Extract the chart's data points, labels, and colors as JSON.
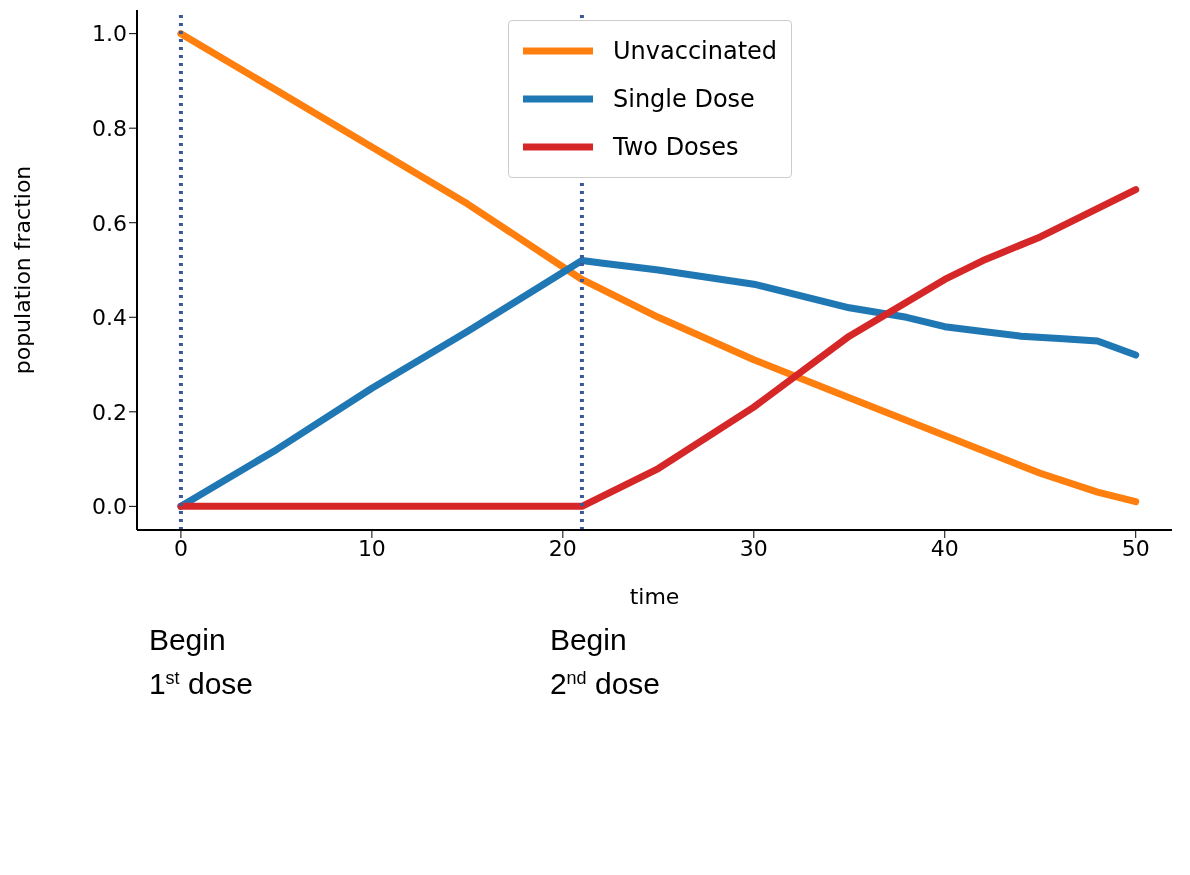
{
  "chart_data": {
    "type": "line",
    "xlabel": "time",
    "ylabel": "population fraction",
    "xlim": [
      -2.3,
      51.9
    ],
    "ylim": [
      -0.05,
      1.05
    ],
    "xticks": [
      0,
      10,
      20,
      30,
      40,
      50
    ],
    "yticks": [
      {
        "value": 0,
        "label": "0.0"
      },
      {
        "value": 0.2,
        "label": "0.2"
      },
      {
        "value": 0.4,
        "label": "0.4"
      },
      {
        "value": 0.6,
        "label": "0.6"
      },
      {
        "value": 0.8,
        "label": "0.8"
      },
      {
        "value": 1,
        "label": "1.0"
      }
    ],
    "grid": false,
    "legend": "top",
    "line_style": "solid",
    "marker": "none",
    "series": [
      {
        "name": "Unvaccinated",
        "color": "#ff7f0e",
        "x": [
          0,
          5,
          10,
          15,
          21,
          25,
          30,
          35,
          40,
          45,
          48,
          50
        ],
        "values": [
          1.0,
          0.88,
          0.76,
          0.64,
          0.48,
          0.4,
          0.31,
          0.23,
          0.15,
          0.07,
          0.03,
          0.01
        ]
      },
      {
        "name": "Single Dose",
        "color": "#1f77b4",
        "x": [
          0,
          5,
          10,
          15,
          19,
          21,
          22,
          25,
          30,
          35,
          38,
          40,
          42,
          44,
          46,
          48,
          50
        ],
        "values": [
          0,
          0.12,
          0.25,
          0.37,
          0.47,
          0.52,
          0.515,
          0.5,
          0.47,
          0.42,
          0.4,
          0.38,
          0.37,
          0.36,
          0.355,
          0.35,
          0.32
        ]
      },
      {
        "name": "Two Doses",
        "color": "#d62728",
        "x": [
          0,
          21,
          25,
          30,
          35,
          40,
          42,
          45,
          50
        ],
        "values": [
          0,
          0,
          0.08,
          0.21,
          0.36,
          0.48,
          0.52,
          0.57,
          0.67
        ]
      }
    ],
    "ref_lines": [
      {
        "axis": "x",
        "value": 0,
        "color": "#3b5998",
        "line_style": "dotted"
      },
      {
        "axis": "x",
        "value": 21,
        "color": "#3b5998",
        "line_style": "dotted"
      }
    ],
    "annotations": [
      "Begin\n1$^{st}$ dose",
      "Begin\n2$^{nd}$ dose"
    ]
  }
}
